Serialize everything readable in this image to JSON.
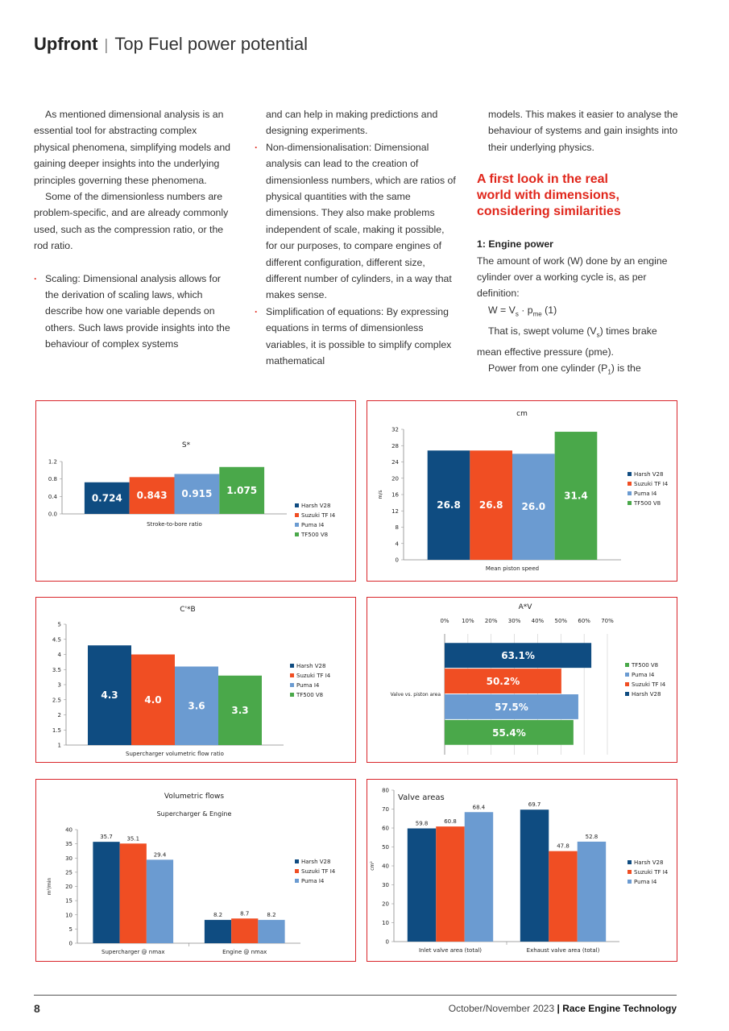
{
  "header": {
    "section": "Upfront",
    "separator": "|",
    "title": "Top Fuel power potential"
  },
  "columns": {
    "col1": {
      "p1": "As mentioned dimensional analysis is an essential tool for abstracting complex physical phenomena, simplifying models and gaining deeper insights into the underlying principles governing these phenomena.",
      "p2": "Some of the dimensionless numbers are problem-specific, and are already commonly used, such as the compression ratio, or the rod ratio.",
      "bullet1": "Scaling: Dimensional analysis allows for the derivation of scaling laws, which describe how one variable depends on others. Such laws provide insights into the behaviour of complex systems"
    },
    "col2": {
      "cont": "and can help in making predictions and designing experiments.",
      "bullet2": "Non-dimensionalisation: Dimensional analysis can lead to the creation of dimensionless numbers, which are ratios of physical quantities with the same dimensions. They also make problems independent of scale, making it possible, for our purposes, to compare engines of different configuration, different size, different number of cylinders, in a way that makes sense.",
      "bullet3": "Simplification of equations: By expressing equations in terms of dimensionless variables, it is possible to simplify complex mathematical"
    },
    "col3": {
      "cont": "models. This makes it easier to analyse the behaviour of systems and gain insights into their underlying physics.",
      "heading": "A first look in the real world with dimensions, considering similarities",
      "subheading": "1: Engine power",
      "p1": "The amount of work (W) done by an engine cylinder over a working cycle is, as per definition:",
      "formula": {
        "a": "W = V",
        "sub1": "s",
        "b": "· p",
        "sub2": "me",
        "c": "(1)"
      },
      "p2": {
        "a": "That is, swept volume (V",
        "sub": "s",
        "b": ") times brake mean effective pressure (pme)."
      },
      "p3": {
        "a": "Power from one cylinder (P",
        "sub": "1",
        "b": ") is the"
      }
    }
  },
  "chart_data": [
    {
      "type": "bar",
      "title": "S*",
      "categories": [
        "Stroke-to-bore ratio"
      ],
      "series": [
        {
          "name": "Harsh V28",
          "color": "#0f4c81",
          "values": [
            0.724
          ]
        },
        {
          "name": "Suzuki TF I4",
          "color": "#f04e23",
          "values": [
            0.843
          ]
        },
        {
          "name": "Puma I4",
          "color": "#6b9bd1",
          "values": [
            0.915
          ]
        },
        {
          "name": "TF500 V8",
          "color": "#4aa84a",
          "values": [
            1.075
          ]
        }
      ],
      "ylim": [
        0,
        1.2
      ],
      "yticks": [
        {
          "value": 0,
          "label": "0.0"
        },
        0.4,
        0.8,
        1.2
      ],
      "grid": false,
      "label_position": "inside"
    },
    {
      "type": "bar",
      "title": "cm",
      "y_label": "m/s",
      "categories": [
        "Mean piston speed"
      ],
      "series": [
        {
          "name": "Harsh V28",
          "color": "#0f4c81",
          "values": [
            26.8
          ]
        },
        {
          "name": "Suzuki TF I4",
          "color": "#f04e23",
          "values": [
            26.8
          ]
        },
        {
          "name": "Puma I4",
          "color": "#6b9bd1",
          "values": [
            26
          ],
          "value_labels": [
            "26.0"
          ]
        },
        {
          "name": "TF500 V8",
          "color": "#4aa84a",
          "values": [
            31.4
          ]
        }
      ],
      "ylim": [
        0,
        32
      ],
      "yticks": [
        0,
        4,
        8,
        12,
        16,
        20,
        24,
        28,
        32
      ],
      "grid": false,
      "label_position": "inside"
    },
    {
      "type": "bar",
      "title": "C'*B",
      "categories": [
        "Supercharger volumetric flow ratio"
      ],
      "series": [
        {
          "name": "Harsh V28",
          "color": "#0f4c81",
          "values": [
            4.3
          ]
        },
        {
          "name": "Suzuki TF I4",
          "color": "#f04e23",
          "values": [
            4
          ],
          "value_labels": [
            "4.0"
          ]
        },
        {
          "name": "Puma I4",
          "color": "#6b9bd1",
          "values": [
            3.6
          ]
        },
        {
          "name": "TF500 V8",
          "color": "#4aa84a",
          "values": [
            3.3
          ]
        }
      ],
      "ylim": [
        1,
        5
      ],
      "yticks": [
        1,
        1.5,
        2,
        2.5,
        3,
        3.5,
        4,
        4.5,
        5
      ],
      "grid": false,
      "label_position": "inside"
    },
    {
      "type": "barh",
      "title": "A*V",
      "categories": [
        "Valve vs. piston area"
      ],
      "series": [
        {
          "name": "Harsh V28",
          "color": "#0f4c81",
          "values": [
            63.1
          ],
          "value_labels": [
            "63.1%"
          ]
        },
        {
          "name": "Suzuki TF I4",
          "color": "#f04e23",
          "values": [
            50.2
          ],
          "value_labels": [
            "50.2%"
          ]
        },
        {
          "name": "Puma I4",
          "color": "#6b9bd1",
          "values": [
            57.5
          ],
          "value_labels": [
            "57.5%"
          ]
        },
        {
          "name": "TF500 V8",
          "color": "#4aa84a",
          "values": [
            55.4
          ],
          "value_labels": [
            "55.4%"
          ]
        }
      ],
      "xlim": [
        0,
        70
      ],
      "xticks": [
        {
          "value": 0,
          "label": "0%"
        },
        {
          "value": 10,
          "label": "10%"
        },
        {
          "value": 20,
          "label": "20%"
        },
        {
          "value": 30,
          "label": "30%"
        },
        {
          "value": 40,
          "label": "40%"
        },
        {
          "value": 50,
          "label": "50%"
        },
        {
          "value": 60,
          "label": "60%"
        },
        {
          "value": 70,
          "label": "70%"
        }
      ],
      "grid": true,
      "label_position": "inside",
      "legend_reversed": true
    },
    {
      "type": "bar",
      "title": "Volumetric flows",
      "subtitle": "Supercharger & Engine",
      "y_label": "m³/min",
      "categories": [
        "Supercharger @ nmax",
        "Engine @ nmax"
      ],
      "series": [
        {
          "name": "Harsh V28",
          "color": "#0f4c81",
          "values": [
            35.7,
            8.2
          ]
        },
        {
          "name": "Suzuki TF I4",
          "color": "#f04e23",
          "values": [
            35.1,
            8.7
          ]
        },
        {
          "name": "Puma I4",
          "color": "#6b9bd1",
          "values": [
            29.4,
            8.2
          ]
        }
      ],
      "ylim": [
        0,
        40
      ],
      "yticks": [
        0,
        5,
        10,
        15,
        20,
        25,
        30,
        35,
        40
      ],
      "grid": false,
      "label_position": "above"
    },
    {
      "type": "bar",
      "title": "Valve areas",
      "y_label": "cm²",
      "categories": [
        "Inlet valve area (total)",
        "Exhaust valve area (total)"
      ],
      "series": [
        {
          "name": "Harsh V28",
          "color": "#0f4c81",
          "values": [
            59.8,
            69.7
          ]
        },
        {
          "name": "Suzuki TF I4",
          "color": "#f04e23",
          "values": [
            60.8,
            47.8
          ]
        },
        {
          "name": "Puma I4",
          "color": "#6b9bd1",
          "values": [
            68.4,
            52.8
          ]
        }
      ],
      "ylim": [
        0,
        80
      ],
      "yticks": [
        0,
        10,
        20,
        30,
        40,
        50,
        60,
        70,
        80
      ],
      "grid": false,
      "label_position": "above"
    }
  ],
  "footer": {
    "page": "8",
    "issue": "October/November 2023",
    "separator": "|",
    "magazine": "Race Engine Technology"
  }
}
